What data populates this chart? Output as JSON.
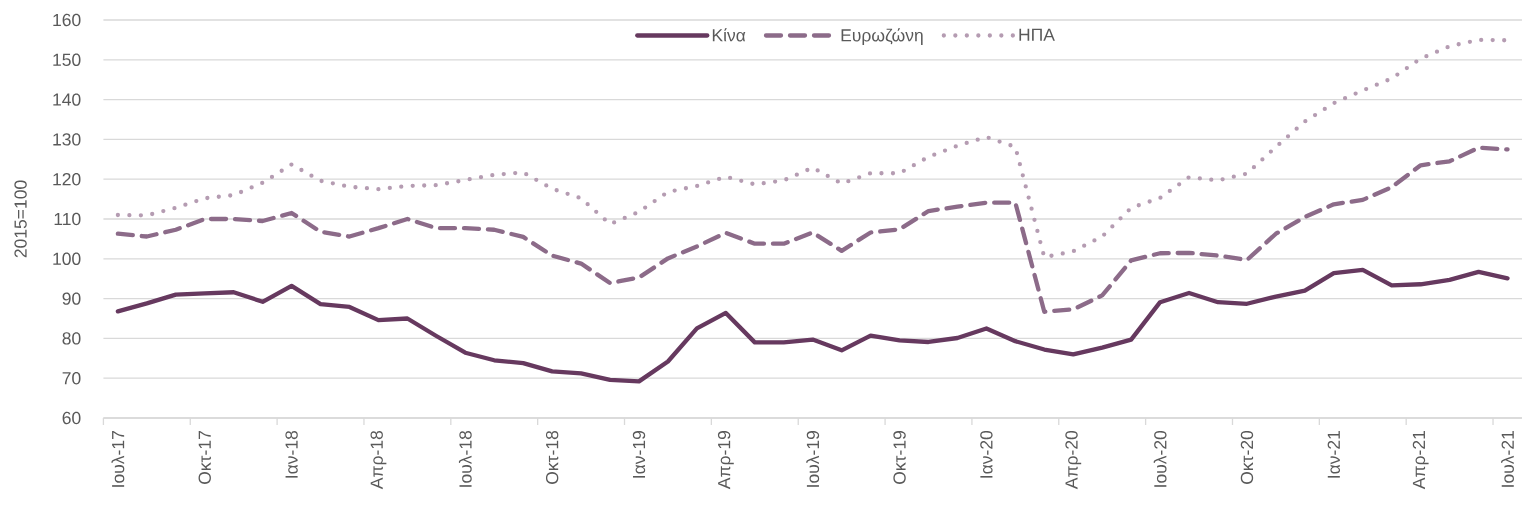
{
  "chart_data": {
    "type": "line",
    "ylabel": "2015=100",
    "categories": [
      "Ιουλ-17",
      null,
      null,
      "Οκτ-17",
      null,
      null,
      "Ιαν-18",
      null,
      null,
      "Απρ-18",
      null,
      null,
      "Ιουλ-18",
      null,
      null,
      "Οκτ-18",
      null,
      null,
      "Ιαν-19",
      null,
      null,
      "Απρ-19",
      null,
      null,
      "Ιουλ-19",
      null,
      null,
      "Οκτ-19",
      null,
      null,
      "Ιαν-20",
      null,
      null,
      "Απρ-20",
      null,
      null,
      "Ιουλ-20",
      null,
      null,
      "Οκτ-20",
      null,
      null,
      "Ιαν-21",
      null,
      null,
      "Απρ-21",
      null,
      null,
      "Ιουλ-21"
    ],
    "series": [
      {
        "name": "Κίνα",
        "color": "#66395f",
        "line_style": "solid",
        "values": [
          86.8,
          88.8,
          91.0,
          91.3,
          91.6,
          89.2,
          93.2,
          88.6,
          87.9,
          84.6,
          85.0,
          80.6,
          76.4,
          74.5,
          73.8,
          71.7,
          71.2,
          69.6,
          69.2,
          74.2,
          82.5,
          86.4,
          79.0,
          79.0,
          79.7,
          77.0,
          80.7,
          79.5,
          79.1,
          80.1,
          82.5,
          79.3,
          77.2,
          76.0,
          77.7,
          79.7,
          89.1,
          91.4,
          89.1,
          88.7,
          90.5,
          92.0,
          96.4,
          97.2,
          93.3,
          93.6,
          94.7,
          96.7,
          95.1
        ]
      },
      {
        "name": "Ευρωζώνη",
        "color": "#8c6b89",
        "line_style": "dashed",
        "values": [
          106.3,
          105.6,
          107.3,
          110.0,
          110.0,
          109.5,
          111.5,
          106.8,
          105.6,
          107.7,
          110.0,
          107.7,
          107.7,
          107.3,
          105.5,
          100.8,
          98.8,
          93.9,
          95.3,
          100.1,
          103.1,
          106.5,
          103.8,
          103.8,
          106.6,
          102.0,
          106.6,
          107.4,
          112.0,
          113.1,
          114.1,
          114.1,
          86.7,
          87.3,
          90.8,
          99.6,
          101.4,
          101.5,
          100.8,
          99.7,
          106.3,
          110.5,
          113.7,
          114.8,
          118.0,
          123.5,
          124.5,
          127.9,
          127.5
        ]
      },
      {
        "name": "ΗΠΑ",
        "color": "#b59cb2",
        "line_style": "dotted",
        "values": [
          111.0,
          110.9,
          112.8,
          115.2,
          116.0,
          119.1,
          123.7,
          119.6,
          118.1,
          117.5,
          118.3,
          118.5,
          119.8,
          121.1,
          121.7,
          117.6,
          115.2,
          108.7,
          111.8,
          116.8,
          118.3,
          120.6,
          118.7,
          119.7,
          122.9,
          118.9,
          121.5,
          121.5,
          125.6,
          128.4,
          130.6,
          128.1,
          100.4,
          101.9,
          105.6,
          112.8,
          115.3,
          120.5,
          119.7,
          121.4,
          128.1,
          134.5,
          139.1,
          142.3,
          145.3,
          150.3,
          153.4,
          155.0,
          154.9
        ]
      }
    ],
    "ylim": [
      60,
      160
    ],
    "yticks": [
      60,
      70,
      80,
      90,
      100,
      110,
      120,
      130,
      140,
      150,
      160
    ],
    "grid": "y",
    "legend": "top"
  }
}
